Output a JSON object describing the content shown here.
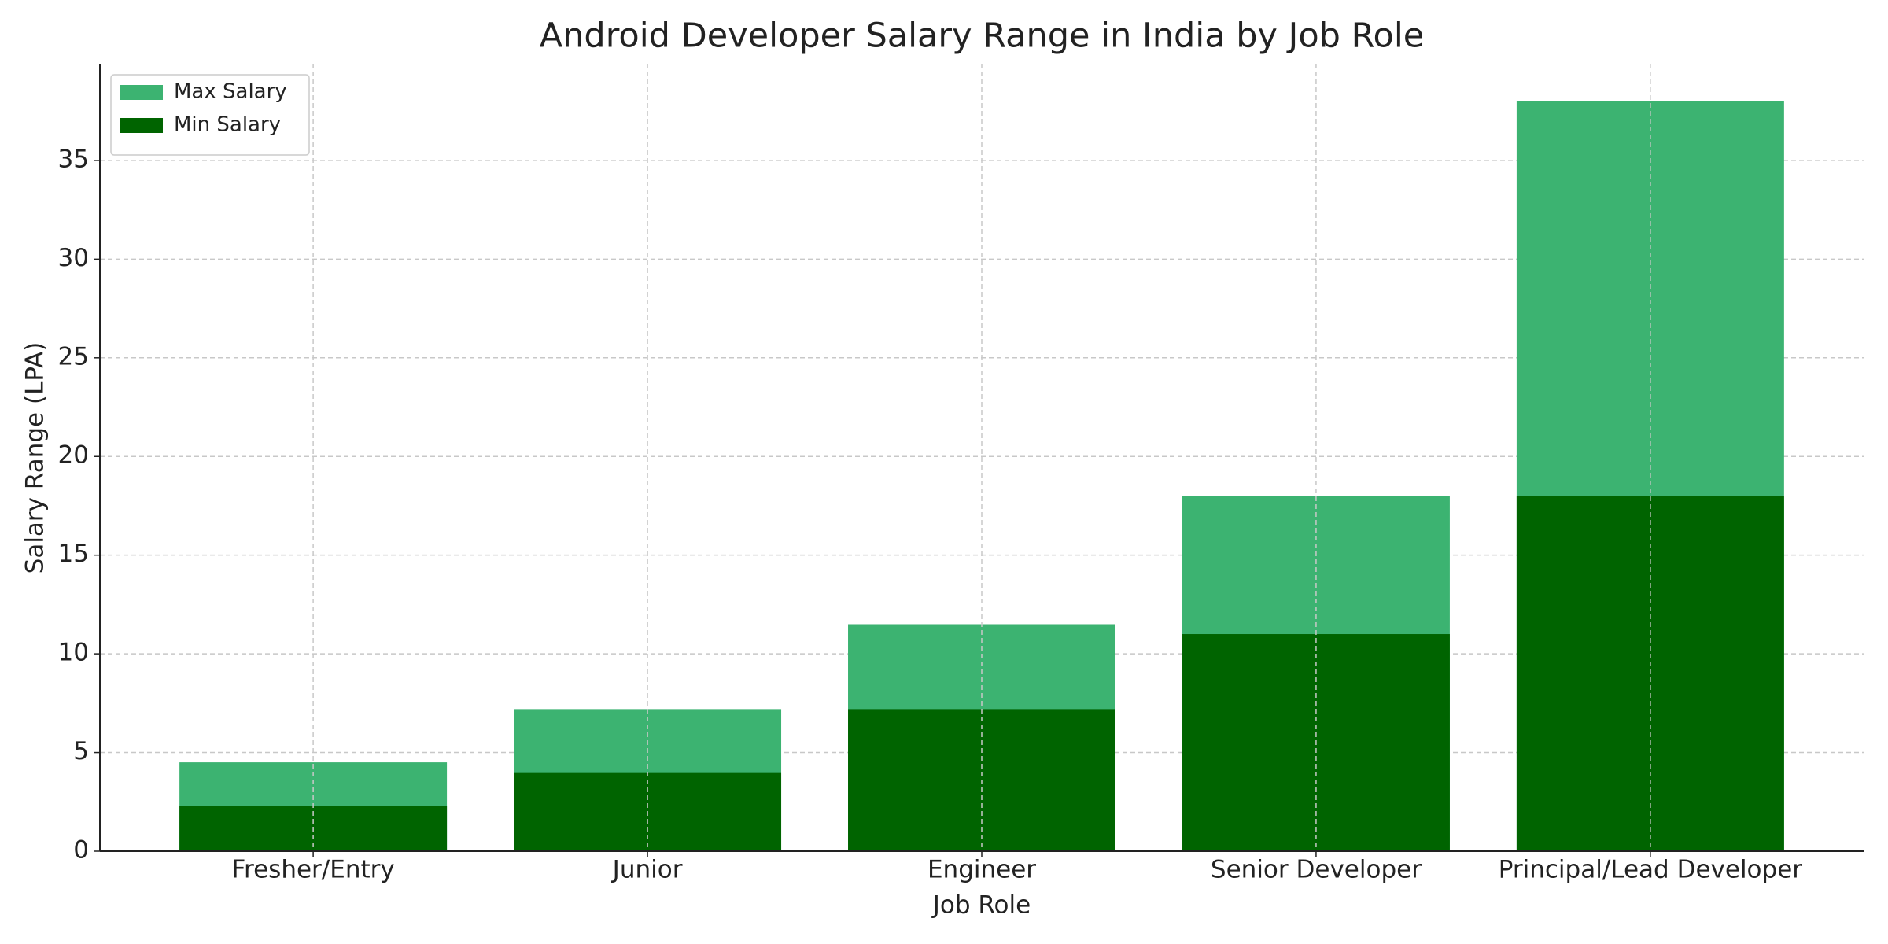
{
  "chart_data": {
    "type": "bar",
    "title": "Android Developer Salary Range in India by Job Role",
    "x_label": "Job Role",
    "y_label": "Salary Range (LPA)",
    "categories": [
      "Fresher/Entry",
      "Junior",
      "Engineer",
      "Senior Developer",
      "Principal/Lead Developer"
    ],
    "series": [
      {
        "name": "Max Salary",
        "color": "#3cb371",
        "values": [
          4.5,
          7.2,
          11.5,
          18,
          38
        ]
      },
      {
        "name": "Min Salary",
        "color": "#006400",
        "values": [
          2.3,
          4,
          7.2,
          11,
          18
        ]
      }
    ],
    "ylim": [
      0,
      39.9
    ],
    "yticks": [
      0,
      5,
      10,
      15,
      20,
      25,
      30,
      35
    ],
    "grid": true,
    "legend": "upper-left"
  }
}
